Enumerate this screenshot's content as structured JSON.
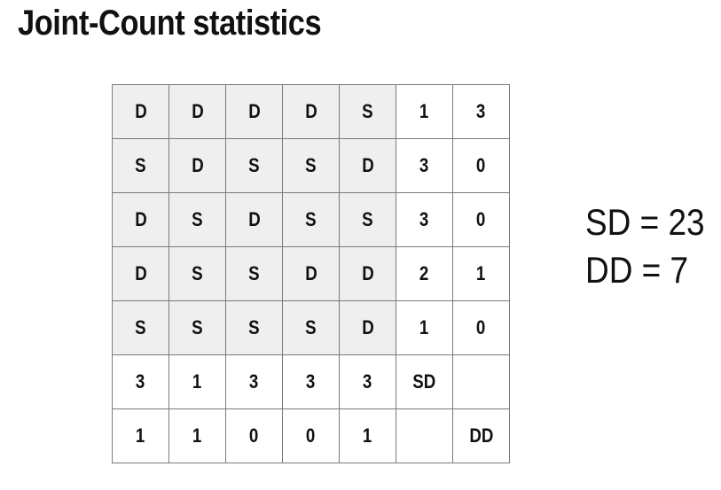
{
  "title": "Joint-Count statistics",
  "grid": {
    "rows": [
      [
        "D",
        "D",
        "D",
        "D",
        "S",
        "1",
        "3"
      ],
      [
        "S",
        "D",
        "S",
        "S",
        "D",
        "3",
        "0"
      ],
      [
        "D",
        "S",
        "D",
        "S",
        "S",
        "3",
        "0"
      ],
      [
        "D",
        "S",
        "S",
        "D",
        "D",
        "2",
        "1"
      ],
      [
        "S",
        "S",
        "S",
        "S",
        "D",
        "1",
        "0"
      ],
      [
        "3",
        "1",
        "3",
        "3",
        "3",
        "SD",
        ""
      ],
      [
        "1",
        "1",
        "0",
        "0",
        "1",
        "",
        "DD"
      ]
    ],
    "region_fill": "#efefef",
    "border_color": "#7a7a7a"
  },
  "stats": {
    "sd": "SD = 23",
    "dd": "DD = 7"
  }
}
